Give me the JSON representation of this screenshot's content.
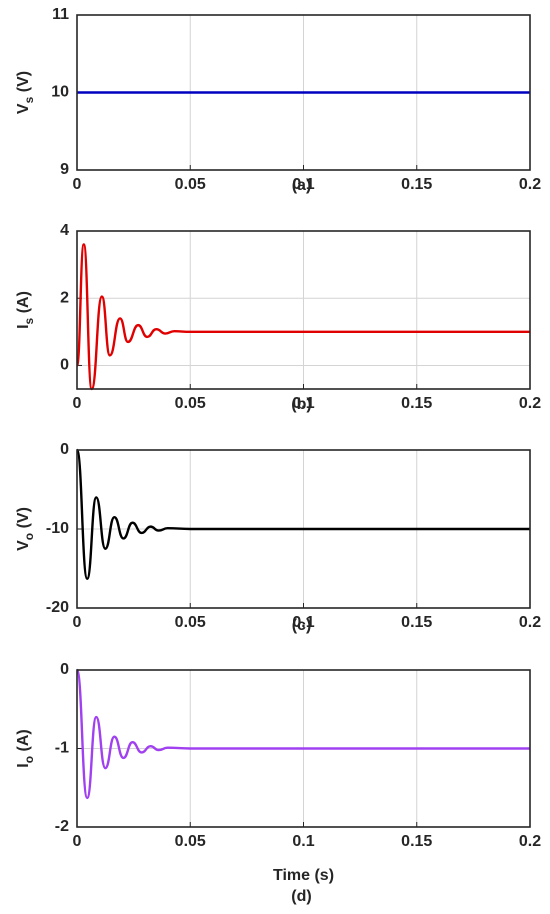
{
  "chart_data": [
    {
      "type": "line",
      "caption": "(a)",
      "ylabel": [
        "V",
        "s",
        " (V)"
      ],
      "color": "#0000c0",
      "x": [
        0,
        0.2
      ],
      "values": [
        10,
        10
      ],
      "xlim": [
        0,
        0.2
      ],
      "xticks": [
        0,
        0.05,
        0.1,
        0.15,
        0.2
      ],
      "ylim": [
        9,
        11
      ],
      "yticks": [
        9,
        10,
        11
      ],
      "grid": true
    },
    {
      "type": "line",
      "caption": "(b)",
      "ylabel": [
        "I",
        "s",
        " (A)"
      ],
      "color": "#e00000",
      "x": [
        0,
        0.003,
        0.0065,
        0.011,
        0.0145,
        0.019,
        0.0225,
        0.027,
        0.031,
        0.035,
        0.039,
        0.043,
        0.05,
        0.2
      ],
      "values": [
        0,
        3.6,
        -0.7,
        2.05,
        0.3,
        1.4,
        0.7,
        1.2,
        0.85,
        1.08,
        0.95,
        1.02,
        1,
        1
      ],
      "xlim": [
        0,
        0.2
      ],
      "xticks": [
        0,
        0.05,
        0.1,
        0.15,
        0.2
      ],
      "ylim": [
        -0.7,
        4
      ],
      "yticks": [
        0,
        2,
        4
      ],
      "grid": true
    },
    {
      "type": "line",
      "caption": "(c)",
      "ylabel": [
        "V",
        "o",
        " (V)"
      ],
      "color": "#000000",
      "x": [
        0,
        0.0045,
        0.0085,
        0.0125,
        0.0165,
        0.0205,
        0.0245,
        0.0285,
        0.0325,
        0.036,
        0.04,
        0.05,
        0.2
      ],
      "values": [
        0,
        -16.3,
        -6,
        -12.5,
        -8.5,
        -11.2,
        -9.2,
        -10.5,
        -9.7,
        -10.2,
        -9.9,
        -10,
        -10
      ],
      "xlim": [
        0,
        0.2
      ],
      "xticks": [
        0,
        0.05,
        0.1,
        0.15,
        0.2
      ],
      "ylim": [
        -20,
        0
      ],
      "yticks": [
        -20,
        -10,
        0
      ],
      "grid": true
    },
    {
      "type": "line",
      "caption": "(d)",
      "ylabel": [
        "I",
        "o",
        " (A)"
      ],
      "xlabel": "Time (s)",
      "color": "#a040f0",
      "x": [
        0,
        0.0045,
        0.0085,
        0.0125,
        0.0165,
        0.0205,
        0.0245,
        0.0285,
        0.0325,
        0.036,
        0.04,
        0.05,
        0.2
      ],
      "values": [
        0,
        -1.63,
        -0.6,
        -1.25,
        -0.85,
        -1.12,
        -0.92,
        -1.05,
        -0.97,
        -1.02,
        -0.99,
        -1,
        -1
      ],
      "xlim": [
        0,
        0.2
      ],
      "xticks": [
        0,
        0.05,
        0.1,
        0.15,
        0.2
      ],
      "ylim": [
        -2,
        0
      ],
      "yticks": [
        -2,
        -1,
        0
      ],
      "grid": true
    }
  ]
}
